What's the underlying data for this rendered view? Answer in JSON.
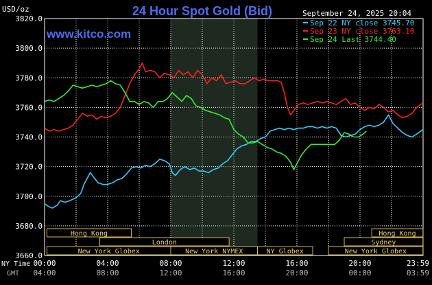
{
  "chart_data": {
    "type": "line",
    "title": "24 Hour Spot Gold (Bid)",
    "watermark": "www.kitco.com",
    "timestamp": "September 24, 2025 20:04",
    "ylabel": "USD/oz",
    "ylim": [
      3660,
      3820
    ],
    "y_ticks": [
      "3820.0",
      "3800.0",
      "3780.0",
      "3760.0",
      "3740.0",
      "3720.0",
      "3700.0",
      "3680.0",
      "3660.0"
    ],
    "xlim": [
      0,
      24
    ],
    "x_ticks_ny": [
      "00:00",
      "04:00",
      "08:00",
      "12:00",
      "16:00",
      "20:00",
      "23:59"
    ],
    "x_ticks_gmt": [
      "04:00",
      "08:00",
      "12:00",
      "16:00",
      "20:00",
      "00:00",
      "03:59"
    ],
    "x_row_label_ny": "NY Time",
    "x_row_label_gmt": "GMT",
    "grid": true,
    "legend_position": "top-right",
    "shaded_session": [
      8.0,
      13.5
    ],
    "series": [
      {
        "name": "Sep 22 NY close 3745.70",
        "color": "#33ccff",
        "points": [
          [
            0,
            3695
          ],
          [
            0.25,
            3693
          ],
          [
            0.5,
            3692
          ],
          [
            0.8,
            3694
          ],
          [
            1.0,
            3697
          ],
          [
            1.3,
            3696
          ],
          [
            1.6,
            3697
          ],
          [
            2.0,
            3699
          ],
          [
            2.3,
            3702
          ],
          [
            2.5,
            3708
          ],
          [
            2.7,
            3712
          ],
          [
            2.9,
            3716
          ],
          [
            3.1,
            3713
          ],
          [
            3.4,
            3709
          ],
          [
            3.7,
            3708
          ],
          [
            4.0,
            3708
          ],
          [
            4.3,
            3709
          ],
          [
            4.6,
            3711
          ],
          [
            4.9,
            3712
          ],
          [
            5.2,
            3715
          ],
          [
            5.5,
            3719
          ],
          [
            5.8,
            3720
          ],
          [
            6.1,
            3719
          ],
          [
            6.4,
            3721
          ],
          [
            6.7,
            3720
          ],
          [
            7.0,
            3722
          ],
          [
            7.3,
            3725
          ],
          [
            7.6,
            3724
          ],
          [
            7.9,
            3722
          ],
          [
            8.1,
            3716
          ],
          [
            8.3,
            3714
          ],
          [
            8.6,
            3718
          ],
          [
            8.9,
            3720
          ],
          [
            9.2,
            3718
          ],
          [
            9.5,
            3719
          ],
          [
            9.8,
            3717
          ],
          [
            10.1,
            3717
          ],
          [
            10.4,
            3716
          ],
          [
            10.7,
            3718
          ],
          [
            11.0,
            3719
          ],
          [
            11.3,
            3722
          ],
          [
            11.6,
            3724
          ],
          [
            11.9,
            3728
          ],
          [
            12.2,
            3732
          ],
          [
            12.5,
            3734
          ],
          [
            12.8,
            3735
          ],
          [
            13.1,
            3737
          ],
          [
            13.4,
            3737
          ],
          [
            13.7,
            3739
          ],
          [
            14.0,
            3740
          ],
          [
            14.3,
            3744
          ],
          [
            14.6,
            3745
          ],
          [
            14.9,
            3746
          ],
          [
            15.2,
            3745
          ],
          [
            15.5,
            3746
          ],
          [
            15.8,
            3745
          ],
          [
            16.1,
            3746
          ],
          [
            16.4,
            3746
          ],
          [
            16.7,
            3747
          ],
          [
            17.0,
            3747
          ],
          [
            17.3,
            3746
          ],
          [
            17.6,
            3747
          ],
          [
            17.9,
            3746
          ],
          [
            18.2,
            3747
          ],
          [
            18.5,
            3746
          ],
          [
            18.8,
            3741
          ],
          [
            19.1,
            3740
          ],
          [
            19.4,
            3741
          ],
          [
            19.7,
            3742
          ],
          [
            20.0,
            3745
          ],
          [
            20.3,
            3747
          ],
          [
            20.6,
            3748
          ],
          [
            20.9,
            3747
          ],
          [
            21.2,
            3748
          ],
          [
            21.5,
            3750
          ],
          [
            21.8,
            3755
          ],
          [
            22.1,
            3749
          ],
          [
            22.4,
            3746
          ],
          [
            22.7,
            3743
          ],
          [
            23.0,
            3741
          ],
          [
            23.3,
            3740
          ],
          [
            23.6,
            3742
          ],
          [
            23.99,
            3745
          ]
        ]
      },
      {
        "name": "Sep 23 NY close 3763.10",
        "color": "#ff2020",
        "points": [
          [
            0,
            3746
          ],
          [
            0.3,
            3744
          ],
          [
            0.6,
            3745
          ],
          [
            0.9,
            3744
          ],
          [
            1.2,
            3745
          ],
          [
            1.5,
            3746
          ],
          [
            1.8,
            3748
          ],
          [
            2.1,
            3752
          ],
          [
            2.4,
            3756
          ],
          [
            2.7,
            3754
          ],
          [
            3.0,
            3755
          ],
          [
            3.3,
            3752
          ],
          [
            3.6,
            3754
          ],
          [
            3.9,
            3753
          ],
          [
            4.2,
            3754
          ],
          [
            4.5,
            3756
          ],
          [
            4.8,
            3760
          ],
          [
            5.1,
            3768
          ],
          [
            5.4,
            3776
          ],
          [
            5.7,
            3782
          ],
          [
            6.0,
            3786
          ],
          [
            6.2,
            3790
          ],
          [
            6.4,
            3784
          ],
          [
            6.7,
            3785
          ],
          [
            7.0,
            3784
          ],
          [
            7.3,
            3780
          ],
          [
            7.6,
            3783
          ],
          [
            7.9,
            3782
          ],
          [
            8.2,
            3780
          ],
          [
            8.5,
            3785
          ],
          [
            8.8,
            3782
          ],
          [
            9.1,
            3784
          ],
          [
            9.4,
            3780
          ],
          [
            9.7,
            3785
          ],
          [
            10.0,
            3782
          ],
          [
            10.3,
            3776
          ],
          [
            10.6,
            3780
          ],
          [
            10.9,
            3778
          ],
          [
            11.2,
            3782
          ],
          [
            11.5,
            3776
          ],
          [
            11.8,
            3777
          ],
          [
            12.1,
            3778
          ],
          [
            12.4,
            3776
          ],
          [
            12.7,
            3776
          ],
          [
            13.0,
            3778
          ],
          [
            13.3,
            3780
          ],
          [
            13.6,
            3778
          ],
          [
            13.9,
            3779
          ],
          [
            14.2,
            3778
          ],
          [
            14.5,
            3778
          ],
          [
            14.8,
            3778
          ],
          [
            15.0,
            3777
          ],
          [
            15.2,
            3770
          ],
          [
            15.4,
            3760
          ],
          [
            15.6,
            3755
          ],
          [
            15.8,
            3758
          ],
          [
            16.1,
            3762
          ],
          [
            16.4,
            3763
          ],
          [
            16.7,
            3762
          ],
          [
            17.0,
            3763
          ],
          [
            17.3,
            3764
          ],
          [
            17.6,
            3763
          ],
          [
            17.9,
            3764
          ],
          [
            18.2,
            3763
          ],
          [
            18.5,
            3762
          ],
          [
            18.8,
            3764
          ],
          [
            19.1,
            3766
          ],
          [
            19.4,
            3762
          ],
          [
            19.7,
            3763
          ],
          [
            20.0,
            3760
          ],
          [
            20.3,
            3758
          ],
          [
            20.6,
            3760
          ],
          [
            20.9,
            3759
          ],
          [
            21.2,
            3762
          ],
          [
            21.5,
            3760
          ],
          [
            21.8,
            3757
          ],
          [
            22.1,
            3758
          ],
          [
            22.4,
            3755
          ],
          [
            22.7,
            3753
          ],
          [
            23.0,
            3754
          ],
          [
            23.3,
            3756
          ],
          [
            23.6,
            3760
          ],
          [
            23.99,
            3763
          ]
        ]
      },
      {
        "name": "Sep 24 Last 3744.40",
        "color": "#33ee33",
        "points": [
          [
            0,
            3764
          ],
          [
            0.3,
            3765
          ],
          [
            0.6,
            3764
          ],
          [
            0.9,
            3766
          ],
          [
            1.2,
            3768
          ],
          [
            1.5,
            3771
          ],
          [
            1.8,
            3775
          ],
          [
            2.1,
            3774
          ],
          [
            2.4,
            3773
          ],
          [
            2.7,
            3774
          ],
          [
            3.0,
            3775
          ],
          [
            3.3,
            3774
          ],
          [
            3.6,
            3775
          ],
          [
            3.9,
            3776
          ],
          [
            4.2,
            3778
          ],
          [
            4.5,
            3776
          ],
          [
            4.8,
            3775
          ],
          [
            5.1,
            3770
          ],
          [
            5.4,
            3764
          ],
          [
            5.7,
            3764
          ],
          [
            6.0,
            3762
          ],
          [
            6.3,
            3764
          ],
          [
            6.6,
            3763
          ],
          [
            6.9,
            3760
          ],
          [
            7.2,
            3764
          ],
          [
            7.5,
            3764
          ],
          [
            7.8,
            3766
          ],
          [
            8.1,
            3770
          ],
          [
            8.4,
            3767
          ],
          [
            8.7,
            3764
          ],
          [
            9.0,
            3768
          ],
          [
            9.3,
            3766
          ],
          [
            9.6,
            3761
          ],
          [
            9.9,
            3760
          ],
          [
            10.2,
            3758
          ],
          [
            10.5,
            3757
          ],
          [
            10.8,
            3756
          ],
          [
            11.1,
            3755
          ],
          [
            11.4,
            3753
          ],
          [
            11.7,
            3752
          ],
          [
            12.0,
            3745
          ],
          [
            12.3,
            3742
          ],
          [
            12.6,
            3740
          ],
          [
            12.9,
            3736
          ],
          [
            13.2,
            3736
          ],
          [
            13.5,
            3737
          ],
          [
            13.8,
            3735
          ],
          [
            14.1,
            3733
          ],
          [
            14.4,
            3732
          ],
          [
            14.7,
            3730
          ],
          [
            15.0,
            3729
          ],
          [
            15.3,
            3727
          ],
          [
            15.6,
            3723
          ],
          [
            15.8,
            3718
          ],
          [
            16.0,
            3722
          ],
          [
            16.3,
            3728
          ],
          [
            16.6,
            3732
          ],
          [
            16.9,
            3735
          ],
          [
            17.2,
            3735
          ],
          [
            17.5,
            3735
          ],
          [
            17.8,
            3735
          ],
          [
            18.1,
            3735
          ],
          [
            18.4,
            3735
          ],
          [
            18.7,
            3738
          ],
          [
            19.0,
            3743
          ],
          [
            19.3,
            3742
          ],
          [
            19.6,
            3740
          ],
          [
            19.9,
            3740
          ],
          [
            20.2,
            3742
          ],
          [
            20.4,
            3744
          ]
        ]
      }
    ]
  },
  "session_bars": [
    {
      "label": "Hong Kong",
      "row": 1,
      "start": 0.15,
      "end": 5.5
    },
    {
      "label": "Hong Kong",
      "row": 1,
      "start": 20.75,
      "end": 23.99
    },
    {
      "label": "London",
      "row": 2,
      "start": 3.5,
      "end": 11.7
    },
    {
      "label": "Sydney",
      "row": 2,
      "start": 19.0,
      "end": 23.99
    },
    {
      "label": "New York Globex",
      "row": 3,
      "start": 0.15,
      "end": 8.0
    },
    {
      "label": "New York NYMEX",
      "row": 3,
      "start": 8.0,
      "end": 13.5
    },
    {
      "label": "NY Globex",
      "row": 3,
      "start": 13.5,
      "end": 17.0
    },
    {
      "label": "New York Globex",
      "row": 3,
      "start": 18.0,
      "end": 23.99
    }
  ]
}
